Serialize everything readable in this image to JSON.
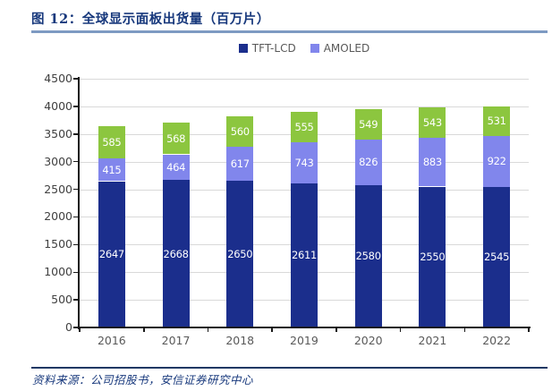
{
  "header": {
    "figure_title": "图 12：全球显示面板出货量（百万片）"
  },
  "footer": {
    "source": "资料来源：公司招股书，安信证券研究中心"
  },
  "colors": {
    "title_text": "#17387C",
    "title_rule": "#7E9AC2",
    "footer_rule": "#1F3864",
    "grid": "#D9D9D9",
    "axis": "#1A1A1A",
    "y_tick_label": "#404040",
    "x_axis_label": "#595959",
    "legend_text": "#595959",
    "bar_label": "#FFFFFF"
  },
  "chart_data": {
    "type": "bar",
    "stacked": true,
    "title": "全球显示面板出货量（百万片）",
    "categories": [
      "2016",
      "2017",
      "2018",
      "2019",
      "2020",
      "2021",
      "2022"
    ],
    "series": [
      {
        "name": "TFT-LCD",
        "color": "#1B2E8C",
        "in_legend": true,
        "values": [
          2647,
          2668,
          2650,
          2611,
          2580,
          2550,
          2545
        ]
      },
      {
        "name": "AMOLED",
        "color": "#8186EC",
        "in_legend": true,
        "values": [
          415,
          464,
          617,
          743,
          826,
          883,
          922
        ]
      },
      {
        "name": "",
        "color": "#8CC63F",
        "in_legend": false,
        "values": [
          585,
          568,
          560,
          555,
          549,
          543,
          531
        ]
      }
    ],
    "ylim": [
      0,
      4500
    ],
    "ytick_step": 500,
    "legend_position": "top-center",
    "grid": "horizontal",
    "data_labels": "inside-center"
  }
}
